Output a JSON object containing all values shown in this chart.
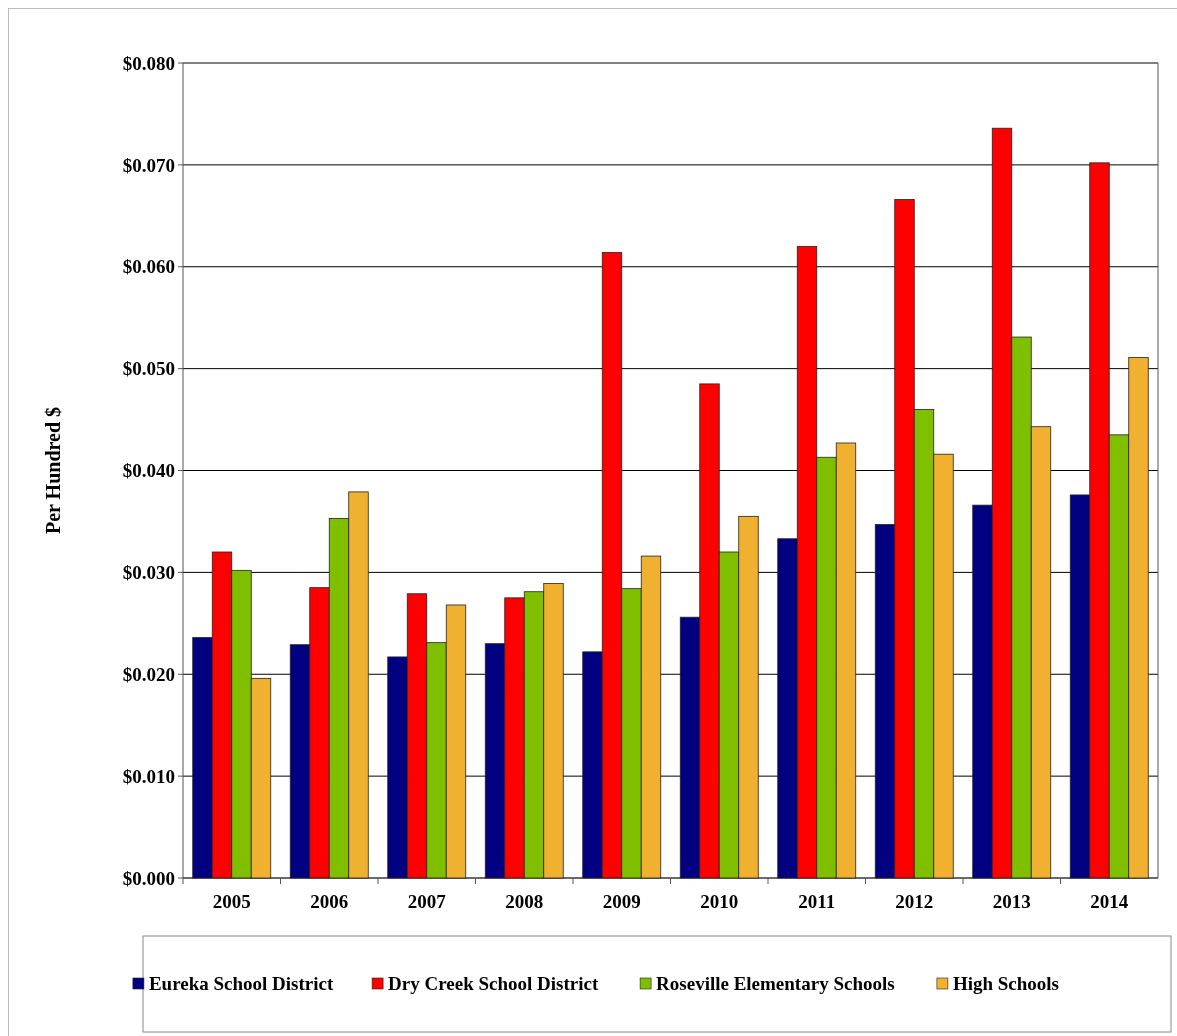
{
  "chart_data": {
    "type": "bar",
    "ylabel": "Per Hundred $",
    "categories": [
      "2005",
      "2006",
      "2007",
      "2008",
      "2009",
      "2010",
      "2011",
      "2012",
      "2013",
      "2014"
    ],
    "series": [
      {
        "name": "Eureka School District",
        "color": "#000080",
        "values": [
          0.0236,
          0.0229,
          0.0217,
          0.023,
          0.0222,
          0.0256,
          0.0333,
          0.0347,
          0.0366,
          0.0376
        ]
      },
      {
        "name": "Dry Creek School District",
        "color": "#ff0000",
        "values": [
          0.032,
          0.0285,
          0.0279,
          0.0275,
          0.0614,
          0.0485,
          0.062,
          0.0666,
          0.0736,
          0.0702
        ]
      },
      {
        "name": "Roseville Elementary Schools",
        "color": "#7fbf00",
        "values": [
          0.0302,
          0.0353,
          0.0231,
          0.0281,
          0.0284,
          0.032,
          0.0413,
          0.046,
          0.0531,
          0.0435
        ]
      },
      {
        "name": "High Schools",
        "color": "#f0b030",
        "values": [
          0.0196,
          0.0379,
          0.0268,
          0.0289,
          0.0316,
          0.0355,
          0.0427,
          0.0416,
          0.0443,
          0.0511
        ]
      }
    ],
    "ylim": [
      0,
      0.08
    ],
    "yticks": [
      {
        "value": 0,
        "label": "$0.000"
      },
      {
        "value": 0.01,
        "label": "$0.010"
      },
      {
        "value": 0.02,
        "label": "$0.020"
      },
      {
        "value": 0.03,
        "label": "$0.030"
      },
      {
        "value": 0.04,
        "label": "$0.040"
      },
      {
        "value": 0.05,
        "label": "$0.050"
      },
      {
        "value": 0.06,
        "label": "$0.060"
      },
      {
        "value": 0.07,
        "label": "$0.070"
      },
      {
        "value": 0.08,
        "label": "$0.080"
      }
    ],
    "grid": "y",
    "legend": "bottom"
  }
}
